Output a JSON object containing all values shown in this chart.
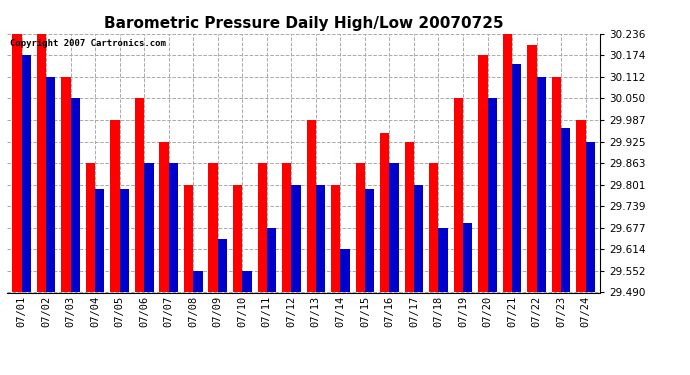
{
  "title": "Barometric Pressure Daily High/Low 20070725",
  "copyright_text": "Copyright 2007 Cartronics.com",
  "ylim": [
    29.49,
    30.236
  ],
  "yticks": [
    29.49,
    29.552,
    29.614,
    29.677,
    29.739,
    29.801,
    29.863,
    29.925,
    29.987,
    30.05,
    30.112,
    30.174,
    30.236
  ],
  "dates": [
    "07/01",
    "07/02",
    "07/03",
    "07/04",
    "07/05",
    "07/06",
    "07/07",
    "07/08",
    "07/09",
    "07/10",
    "07/11",
    "07/12",
    "07/13",
    "07/14",
    "07/15",
    "07/16",
    "07/17",
    "07/18",
    "07/19",
    "07/20",
    "07/21",
    "07/22",
    "07/23",
    "07/24"
  ],
  "highs": [
    30.236,
    30.236,
    30.112,
    29.863,
    29.987,
    30.05,
    29.925,
    29.801,
    29.863,
    29.801,
    29.863,
    29.863,
    29.987,
    29.801,
    29.863,
    29.95,
    29.925,
    29.863,
    30.05,
    30.174,
    30.236,
    30.205,
    30.112,
    29.987
  ],
  "lows": [
    30.174,
    30.112,
    30.05,
    29.787,
    29.787,
    29.863,
    29.863,
    29.552,
    29.645,
    29.552,
    29.677,
    29.801,
    29.801,
    29.614,
    29.787,
    29.863,
    29.801,
    29.677,
    29.69,
    30.05,
    30.15,
    30.112,
    29.963,
    29.925
  ],
  "high_color": "#ff0000",
  "low_color": "#0000cc",
  "bar_width": 0.38,
  "background_color": "#ffffff",
  "grid_color": "#aaaaaa",
  "title_fontsize": 11,
  "tick_fontsize": 7.5,
  "copyright_fontsize": 6.5
}
